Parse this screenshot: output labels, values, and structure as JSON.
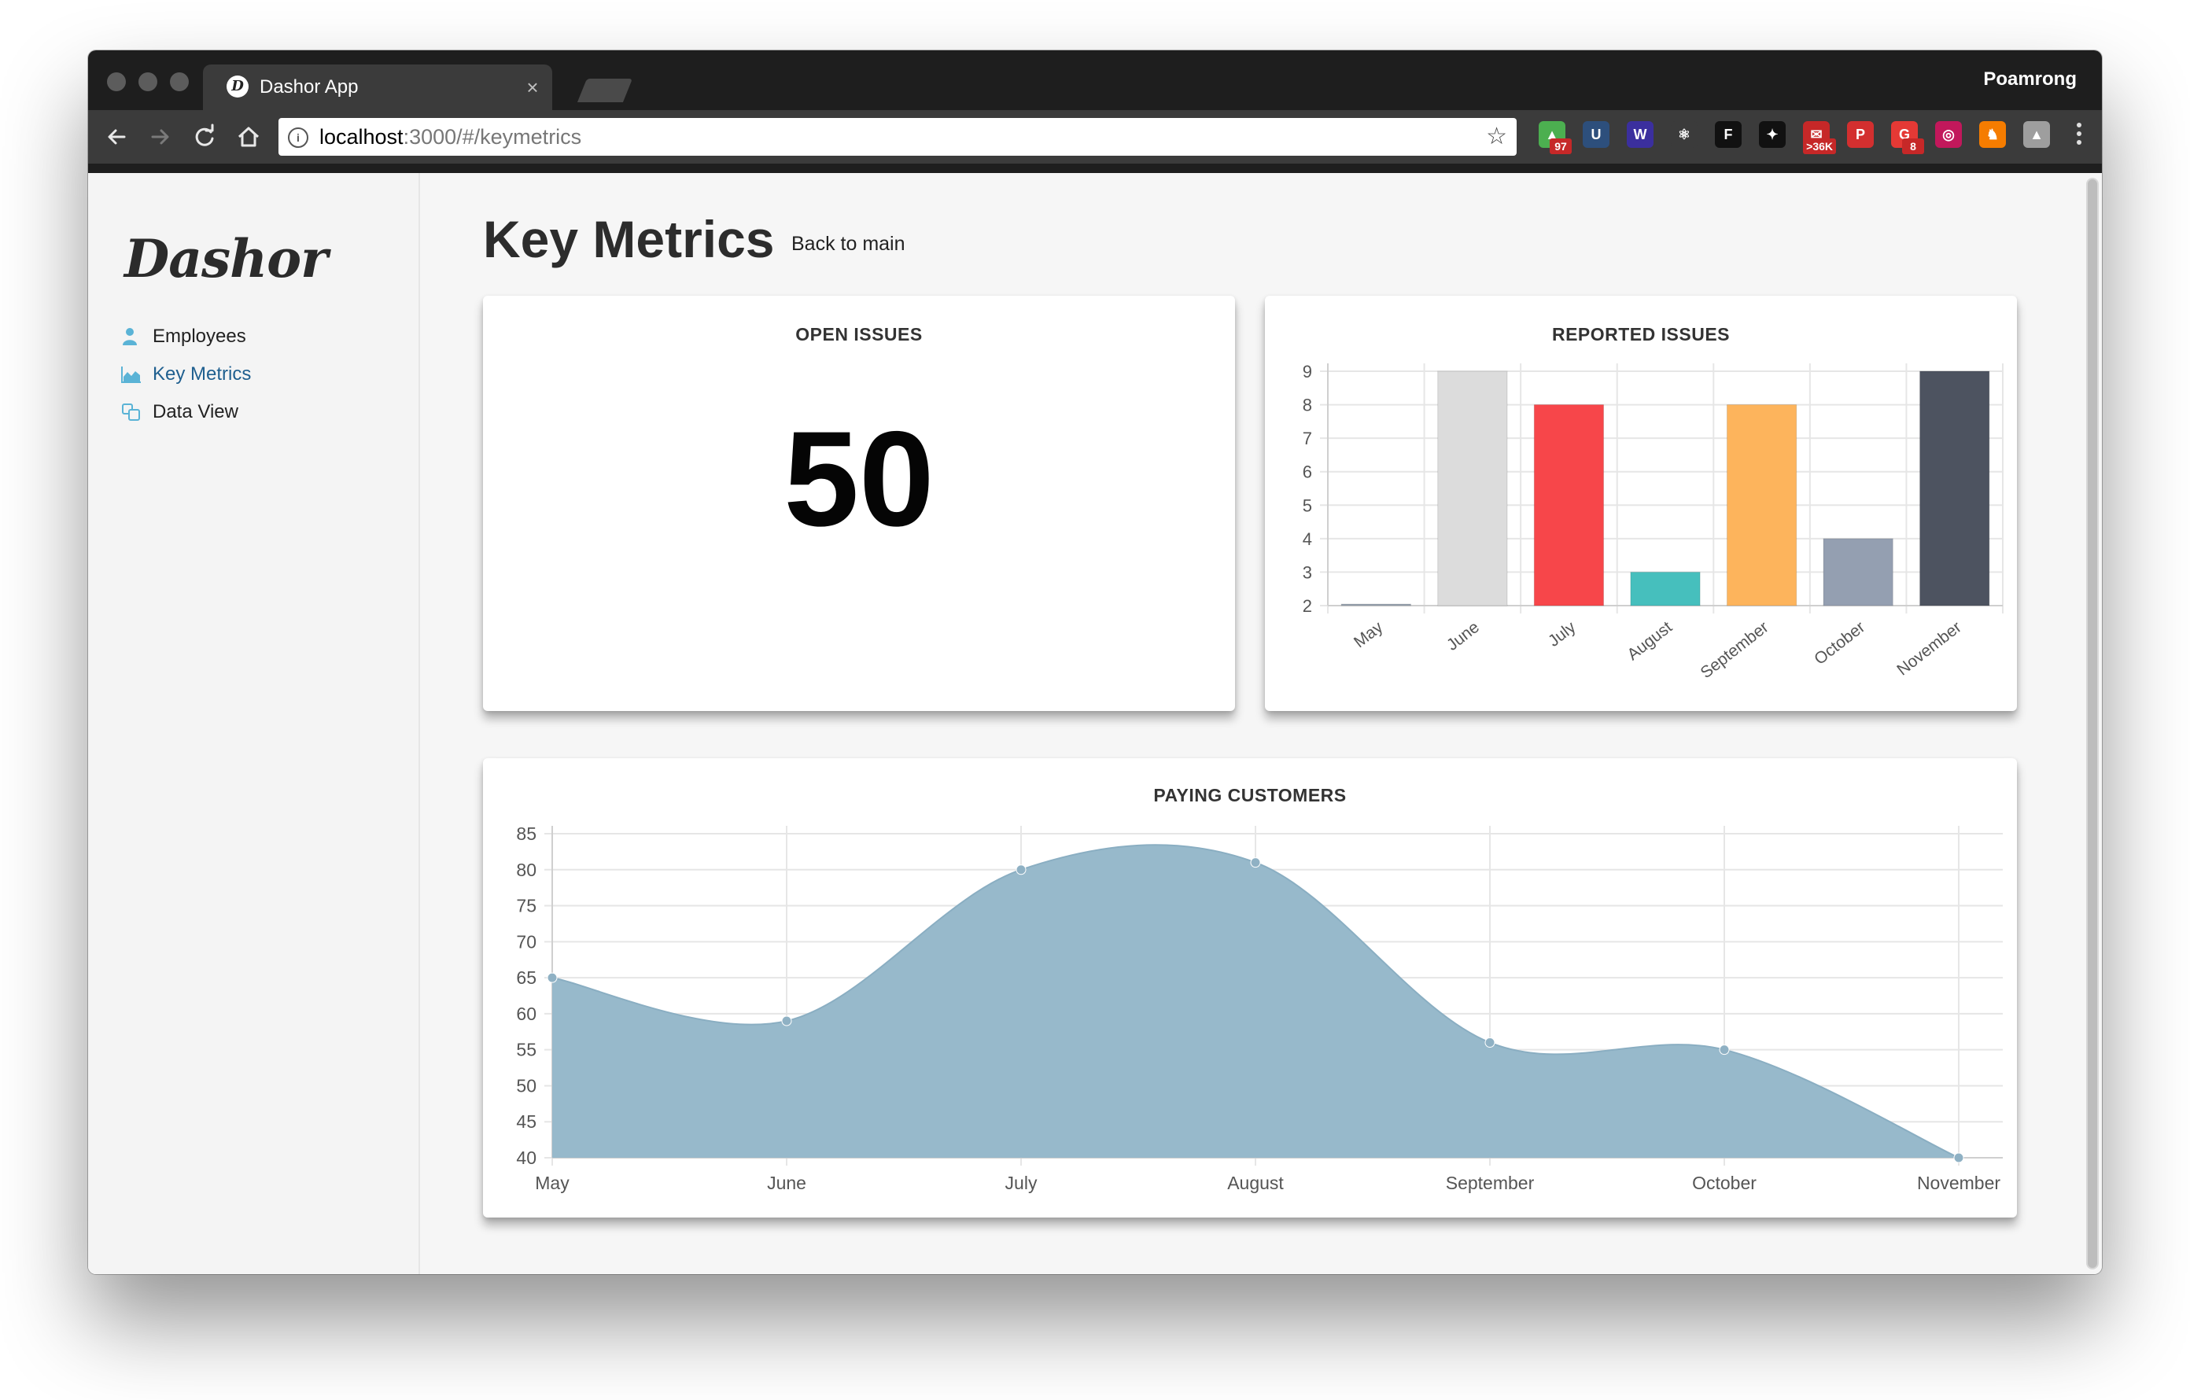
{
  "browser": {
    "tab_title": "Dashor App",
    "tab_favicon": "D",
    "tab_close": "×",
    "user_name": "Poamrong",
    "url_host": "localhost",
    "url_path": ":3000/#/keymetrics",
    "info_icon": "i",
    "star_icon": "☆",
    "extensions": [
      {
        "name": "extension-97-icon",
        "glyph": "▲",
        "badge": "97",
        "color": "#4caf50"
      },
      {
        "name": "extension-u-icon",
        "glyph": "U",
        "badge": "",
        "color": "#2d4f7c"
      },
      {
        "name": "extension-w-icon",
        "glyph": "W",
        "badge": "",
        "color": "#3b2f9e"
      },
      {
        "name": "react-devtools-icon",
        "glyph": "⚛",
        "badge": "",
        "color": "#3b3b3b"
      },
      {
        "name": "extension-f-icon",
        "glyph": "F",
        "badge": "",
        "color": "#111111"
      },
      {
        "name": "extension-bird-icon",
        "glyph": "✦",
        "badge": "",
        "color": "#111111"
      },
      {
        "name": "gmail-icon",
        "glyph": "✉",
        "badge": ">36K",
        "color": "#c62828"
      },
      {
        "name": "pinterest-icon",
        "glyph": "P",
        "badge": "",
        "color": "#d32f2f"
      },
      {
        "name": "extension-8-icon",
        "glyph": "G",
        "badge": "8",
        "color": "#e53935"
      },
      {
        "name": "instagram-icon",
        "glyph": "◎",
        "badge": "",
        "color": "#c2185b"
      },
      {
        "name": "metamask-icon",
        "glyph": "♞",
        "badge": "",
        "color": "#f57c00"
      },
      {
        "name": "google-drive-icon",
        "glyph": "▲",
        "badge": "",
        "color": "#9e9e9e"
      }
    ]
  },
  "sidebar": {
    "logo": "Dashor",
    "items": [
      {
        "label": "Employees",
        "icon": "user-icon",
        "active": false
      },
      {
        "label": "Key Metrics",
        "icon": "area-chart-icon",
        "active": true
      },
      {
        "label": "Data View",
        "icon": "data-view-icon",
        "active": false
      }
    ]
  },
  "main": {
    "title": "Key Metrics",
    "back_link": "Back to main"
  },
  "cards": {
    "open_issues": {
      "title": "OPEN ISSUES",
      "value": "50"
    },
    "reported_issues": {
      "title": "REPORTED ISSUES"
    },
    "paying_customers": {
      "title": "PAYING CUSTOMERS"
    }
  },
  "chart_data": [
    {
      "type": "bar",
      "title": "REPORTED ISSUES",
      "categories": [
        "May",
        "June",
        "July",
        "August",
        "September",
        "October",
        "November"
      ],
      "values": [
        2,
        9,
        8,
        3,
        8,
        4,
        9
      ],
      "colors": [
        "#9aa4b2",
        "#dcdcdc",
        "#f7464a",
        "#46bfbd",
        "#fdb45c",
        "#949fb1",
        "#4d5360"
      ],
      "ylim": [
        2,
        9
      ],
      "yticks": [
        "2",
        "3",
        "4",
        "5",
        "6",
        "7",
        "8",
        "9"
      ],
      "grid": true,
      "legend": "none"
    },
    {
      "type": "area",
      "title": "PAYING CUSTOMERS",
      "categories": [
        "May",
        "June",
        "July",
        "August",
        "September",
        "October",
        "November"
      ],
      "values": [
        65,
        59,
        80,
        81,
        56,
        55,
        40
      ],
      "color": "#97b9cb",
      "ylim": [
        40,
        85
      ],
      "yticks": [
        "40",
        "45",
        "50",
        "55",
        "60",
        "65",
        "70",
        "75",
        "80",
        "85"
      ],
      "grid": true,
      "legend": "none"
    }
  ]
}
